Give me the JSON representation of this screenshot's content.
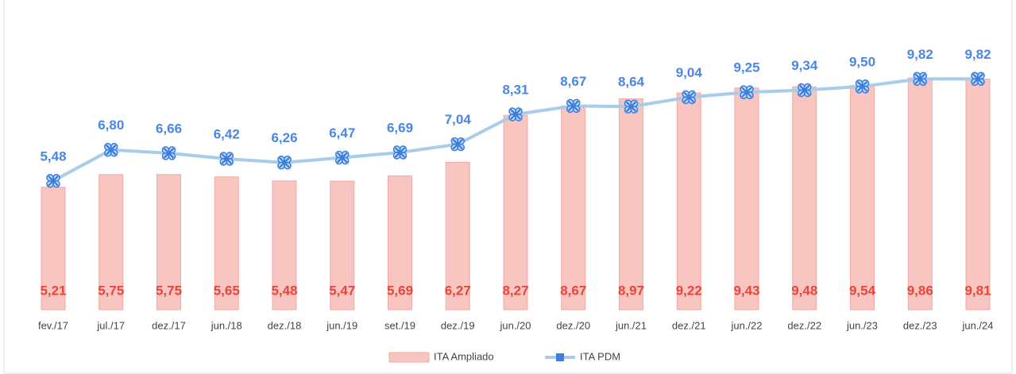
{
  "chart_data": {
    "type": "bar_line",
    "categories": [
      "fev./17",
      "jul./17",
      "dez./17",
      "jun./18",
      "dez./18",
      "jun./19",
      "set./19",
      "dez./19",
      "jun./20",
      "dez./20",
      "jun./21",
      "dez./21",
      "jun./22",
      "dez./22",
      "jun./23",
      "dez./23",
      "jun./24"
    ],
    "series": [
      {
        "name": "ITA Ampliado",
        "type": "bar",
        "color": "#f8c5c0",
        "values": [
          5.21,
          5.75,
          5.75,
          5.65,
          5.48,
          5.47,
          5.69,
          6.27,
          8.27,
          8.67,
          8.97,
          9.22,
          9.43,
          9.48,
          9.54,
          9.86,
          9.81
        ],
        "value_labels": [
          "5,21",
          "5,75",
          "5,75",
          "5,65",
          "5,48",
          "5,47",
          "5,69",
          "6,27",
          "8,27",
          "8,67",
          "8,97",
          "9,22",
          "9,43",
          "9,48",
          "9,54",
          "9,86",
          "9,81"
        ]
      },
      {
        "name": "ITA PDM",
        "type": "line",
        "color": "#a9cce8",
        "values": [
          5.48,
          6.8,
          6.66,
          6.42,
          6.26,
          6.47,
          6.69,
          7.04,
          8.31,
          8.67,
          8.64,
          9.04,
          9.25,
          9.34,
          9.5,
          9.82,
          9.82
        ],
        "value_labels": [
          "5,48",
          "6,80",
          "6,66",
          "6,42",
          "6,26",
          "6,47",
          "6,69",
          "7,04",
          "8,31",
          "8,67",
          "8,64",
          "9,04",
          "9,25",
          "9,34",
          "9,50",
          "9,82",
          "9,82"
        ]
      }
    ],
    "ylim": [
      0,
      11
    ]
  }
}
